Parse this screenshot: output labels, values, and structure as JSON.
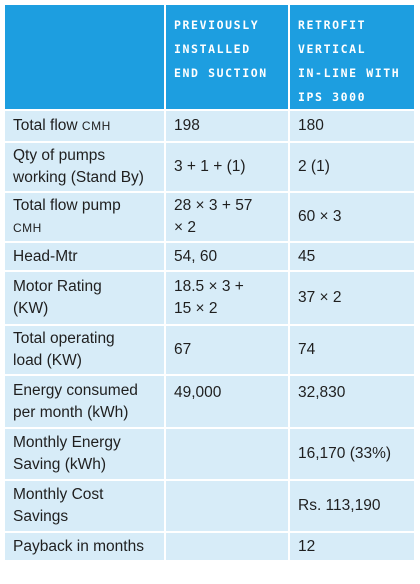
{
  "header": {
    "col0": "",
    "col1_lines": [
      "PREVIOUSLY",
      "INSTALLED",
      "END SUCTION"
    ],
    "col2_lines": [
      "RETROFIT",
      "VERTICAL",
      "IN-LINE WITH",
      "IPS 3000"
    ]
  },
  "rows": [
    {
      "label_lines": [
        "Total flow ",
        "CMH"
      ],
      "label_small": true,
      "prev": [
        "198"
      ],
      "retro": [
        "180"
      ]
    },
    {
      "label_lines": [
        "Qty of pumps",
        "working (Stand By)"
      ],
      "prev": [
        "3 + 1 + (1)"
      ],
      "retro": [
        "2 (1)"
      ]
    },
    {
      "label_lines": [
        "Total flow pump",
        "CMH"
      ],
      "prev": [
        "28 × 3 + 57",
        "× 2"
      ],
      "retro": [
        "60 × 3"
      ]
    },
    {
      "label_lines": [
        "Head-Mtr"
      ],
      "prev": [
        "54, 60"
      ],
      "retro": [
        "45"
      ]
    },
    {
      "label_lines": [
        "Motor Rating",
        "(KW)"
      ],
      "prev": [
        "18.5 × 3 +",
        "15 × 2"
      ],
      "retro": [
        "37 × 2"
      ]
    },
    {
      "label_lines": [
        "Total operating",
        "load (KW)"
      ],
      "prev": [
        "67"
      ],
      "retro": [
        "74"
      ]
    },
    {
      "label_lines": [
        "Energy consumed",
        "per month (kWh)"
      ],
      "prev": [
        "49,000"
      ],
      "retro": [
        "32,830"
      ]
    },
    {
      "label_lines": [
        "Monthly Energy",
        "Saving (kWh)"
      ],
      "prev": [
        ""
      ],
      "retro": [
        "16,170 (33%)"
      ]
    },
    {
      "label_lines": [
        "Monthly Cost",
        "Savings"
      ],
      "prev": [
        ""
      ],
      "retro": [
        "Rs. 113,190"
      ]
    },
    {
      "label_lines": [
        "Payback in months"
      ],
      "prev": [
        ""
      ],
      "retro": [
        "12"
      ]
    }
  ]
}
